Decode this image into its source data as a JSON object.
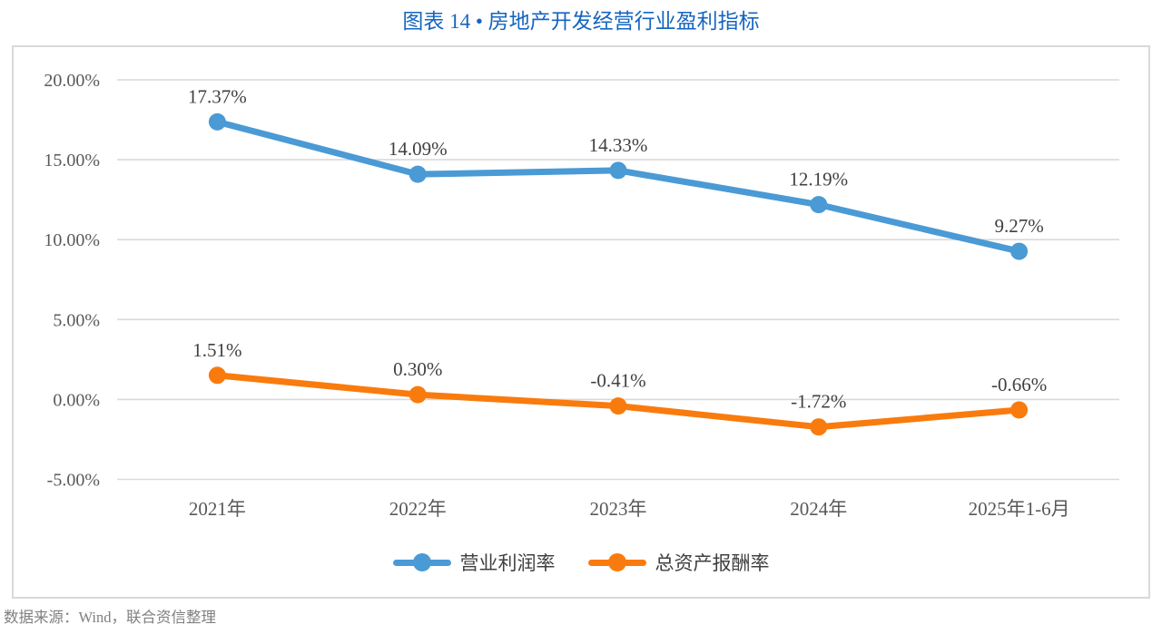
{
  "title": "图表 14 • 房地产开发经营行业盈利指标",
  "footer": {
    "source": "数据来源：Wind，联合资信整理"
  },
  "chart_data": {
    "type": "line",
    "title": "图表 14 • 房地产开发经营行业盈利指标",
    "categories": [
      "2021年",
      "2022年",
      "2023年",
      "2024年",
      "2025年1-6月"
    ],
    "series": [
      {
        "name": "营业利润率",
        "values": [
          17.37,
          14.09,
          14.33,
          12.19,
          9.27
        ],
        "labels": [
          "17.37%",
          "14.09%",
          "14.33%",
          "12.19%",
          "9.27%"
        ],
        "color": "#4A9AD5"
      },
      {
        "name": "总资产报酬率",
        "values": [
          1.51,
          0.3,
          -0.41,
          -1.72,
          -0.66
        ],
        "labels": [
          "1.51%",
          "0.30%",
          "-0.41%",
          "-1.72%",
          "-0.66%"
        ],
        "color": "#F97B0D"
      }
    ],
    "xlabel": "",
    "ylabel": "",
    "ylim": [
      -5,
      20
    ],
    "ytick_step": 5,
    "ytick_labels": [
      "20.00%",
      "15.00%",
      "10.00%",
      "5.00%",
      "0.00%",
      "-5.00%"
    ],
    "grid": true,
    "legend_position": "bottom",
    "colors": {
      "grid": "#D9D9D9",
      "frame_border": "#D9D9D9",
      "axis_text": "#595959",
      "data_label": "#404040",
      "title_text": "#1565C0",
      "footer_text": "#808080"
    }
  }
}
